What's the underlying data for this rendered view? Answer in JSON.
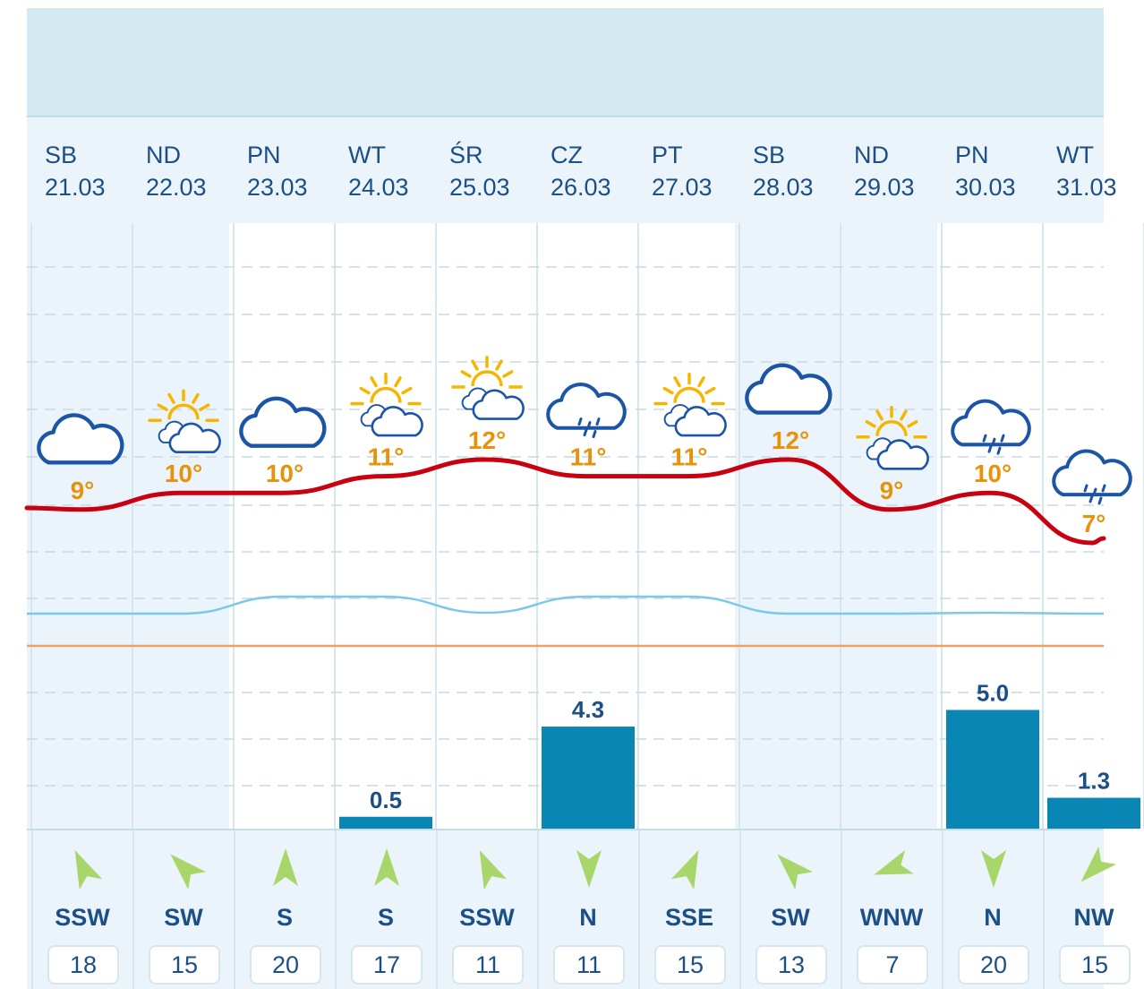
{
  "days": [
    {
      "name": "SB",
      "date": "21.03",
      "temp": "9°",
      "icon": "cloud-icon",
      "precip": null,
      "wind_dir": "SSW",
      "wind_speed": "18",
      "weekend": true
    },
    {
      "name": "ND",
      "date": "22.03",
      "temp": "10°",
      "icon": "sun-clouds-icon",
      "precip": null,
      "wind_dir": "SW",
      "wind_speed": "15",
      "weekend": true
    },
    {
      "name": "PN",
      "date": "23.03",
      "temp": "10°",
      "icon": "cloud-icon",
      "precip": null,
      "wind_dir": "S",
      "wind_speed": "20",
      "weekend": false
    },
    {
      "name": "WT",
      "date": "24.03",
      "temp": "11°",
      "icon": "sun-clouds-icon",
      "precip": "0.5",
      "wind_dir": "S",
      "wind_speed": "17",
      "weekend": false
    },
    {
      "name": "ŚR",
      "date": "25.03",
      "temp": "12°",
      "icon": "sun-clouds-icon",
      "precip": null,
      "wind_dir": "SSW",
      "wind_speed": "11",
      "weekend": false
    },
    {
      "name": "CZ",
      "date": "26.03",
      "temp": "11°",
      "icon": "cloud-rain-icon",
      "precip": "4.3",
      "wind_dir": "N",
      "wind_speed": "11",
      "weekend": false
    },
    {
      "name": "PT",
      "date": "27.03",
      "temp": "11°",
      "icon": "sun-clouds-icon",
      "precip": null,
      "wind_dir": "SSE",
      "wind_speed": "15",
      "weekend": false
    },
    {
      "name": "SB",
      "date": "28.03",
      "temp": "12°",
      "icon": "cloud-icon",
      "precip": null,
      "wind_dir": "SW",
      "wind_speed": "13",
      "weekend": true
    },
    {
      "name": "ND",
      "date": "29.03",
      "temp": "9°",
      "icon": "sun-clouds-icon",
      "precip": null,
      "wind_dir": "WNW",
      "wind_speed": "7",
      "weekend": true
    },
    {
      "name": "PN",
      "date": "30.03",
      "temp": "10°",
      "icon": "cloud-rain-icon",
      "precip": "5.0",
      "wind_dir": "N",
      "wind_speed": "20",
      "weekend": false
    },
    {
      "name": "WT",
      "date": "31.03",
      "temp": "7°",
      "icon": "cloud-rain-icon",
      "precip": "1.3",
      "wind_dir": "NW",
      "wind_speed": "15",
      "weekend": false
    }
  ],
  "colors": {
    "temp_max_line": "#c8000f",
    "temp_min_line": "#7cc8e8",
    "freezing_line": "#f0a060",
    "precip_bar": "#0a86b4",
    "temp_label": "#e8910a",
    "text": "#1c4f86",
    "wind_arrow": "#a8d66a",
    "weekend_bg": "#eaf4fa"
  },
  "chart_data": {
    "type": "line",
    "categories": [
      "21.03",
      "22.03",
      "23.03",
      "24.03",
      "25.03",
      "26.03",
      "27.03",
      "28.03",
      "29.03",
      "30.03",
      "31.03"
    ],
    "series": [
      {
        "values": [
          9,
          10,
          10,
          11,
          12,
          11,
          11,
          12,
          9,
          10,
          7
        ]
      },
      {
        "values": [
          1.3,
          1.3,
          3.2,
          3.2,
          1.4,
          3.2,
          3.2,
          1.3,
          1.3,
          1.4,
          1.3
        ]
      }
    ],
    "precipitation": [
      0,
      0,
      0,
      0.5,
      0,
      4.3,
      0,
      0,
      0,
      5.0,
      1.3
    ]
  }
}
